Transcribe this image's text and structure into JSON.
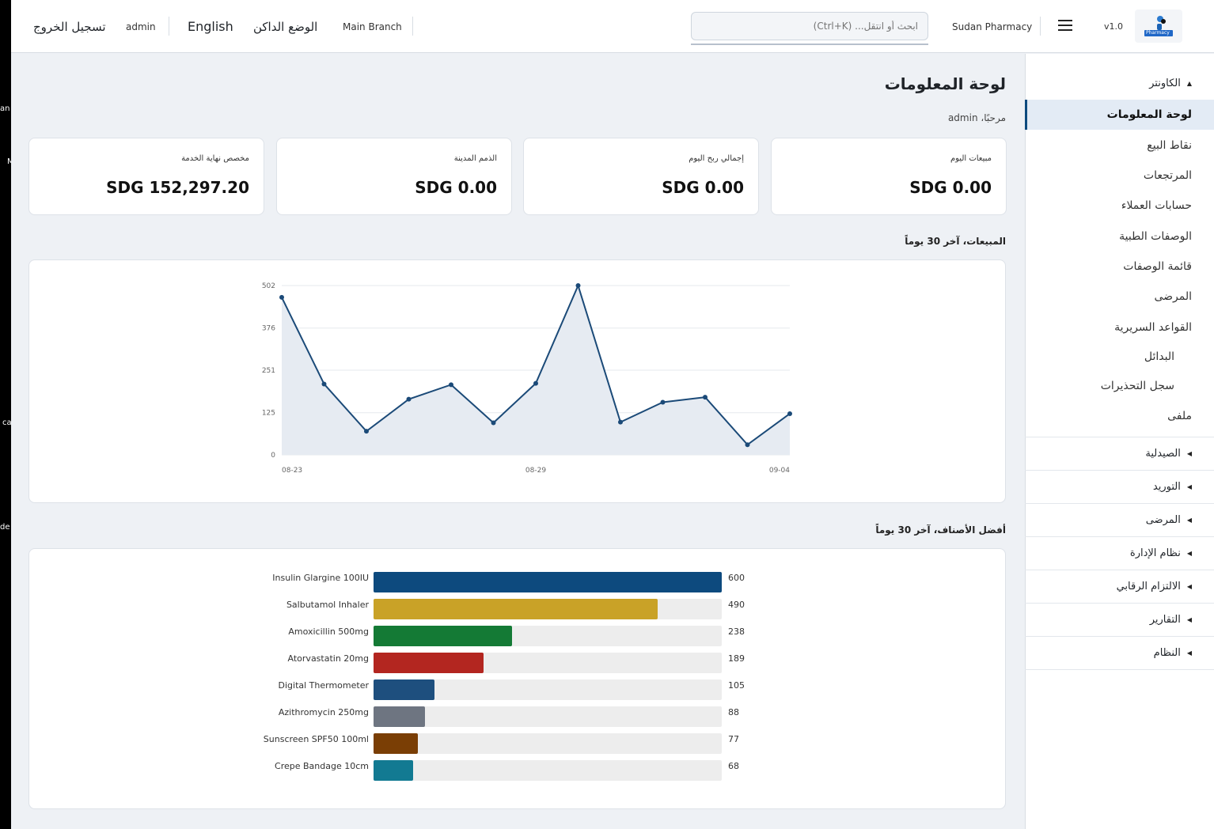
{
  "header": {
    "version": "v1.0",
    "logo_text": "Pharmacy",
    "app_name": "Sudan Pharmacy",
    "search_placeholder": "ابحث أو انتقل... (Ctrl+K)",
    "branch": "Main Branch",
    "dark_mode": "الوضع الداكن",
    "language": "English",
    "user": "admin",
    "logout": "تسجيل الخروج"
  },
  "sidebar": {
    "counter_group": "الكاونتر",
    "counter_items": [
      "لوحة المعلومات",
      "نقاط البيع",
      "المرتجعات",
      "حسابات العملاء",
      "الوصفات الطبية",
      "قائمة الوصفات",
      "المرضى",
      "القواعد السريرية",
      "البدائل",
      "سجل التحذيرات",
      "ملفى"
    ],
    "groups": [
      "الصيدلية",
      "التوريد",
      "المرضى",
      "نظام الإدارة",
      "الالتزام الرقابي",
      "التقارير",
      "النظام"
    ]
  },
  "main": {
    "title": "لوحة المعلومات",
    "welcome": "مرحبًا، admin",
    "cards": [
      {
        "label": "مبيعات اليوم",
        "value": "SDG 0.00"
      },
      {
        "label": "إجمالي ربح اليوم",
        "value": "SDG 0.00"
      },
      {
        "label": "الذمم المدينة",
        "value": "SDG 0.00"
      },
      {
        "label": "مخصص نهاية الخدمة",
        "value": "SDG 152,297.20"
      }
    ],
    "sales_title": "المبيعات، آخر 30 يوماً",
    "top_items_title": "أفضل الأصناف، آخر 30 يوماً"
  },
  "left_strip": [
    "an",
    "M",
    "ca",
    "de"
  ],
  "colors": {
    "accent": "#0d4a7e",
    "line": "#1b4a78",
    "area": "#e6ebf2"
  },
  "chart_data": [
    {
      "type": "area",
      "title": "المبيعات، آخر 30 يوماً",
      "x": [
        "08-23",
        "08-24",
        "08-25",
        "08-26",
        "08-27",
        "08-28",
        "08-29",
        "08-30",
        "08-31",
        "09-01",
        "09-02",
        "09-03",
        "09-04"
      ],
      "x_tick_labels": [
        "08-23",
        "08-29",
        "09-04"
      ],
      "y": [
        467,
        210,
        70,
        165,
        208,
        95,
        212,
        502,
        97,
        156,
        171,
        30,
        122
      ],
      "yticks": [
        0,
        125,
        251,
        376,
        502
      ],
      "ylim": [
        0,
        502
      ],
      "grid": true
    },
    {
      "type": "bar",
      "orientation": "horizontal",
      "title": "أفضل الأصناف، آخر 30 يوماً",
      "categories": [
        "Insulin Glargine 100IU",
        "Salbutamol Inhaler",
        "Amoxicillin 500mg",
        "Atorvastatin 20mg",
        "Digital Thermometer",
        "Azithromycin 250mg",
        "Sunscreen SPF50 100ml",
        "Crepe Bandage 10cm"
      ],
      "values": [
        600,
        490,
        238,
        189,
        105,
        88,
        77,
        68
      ],
      "colors": [
        "#0d4a7e",
        "#c9a227",
        "#147a35",
        "#b32620",
        "#1e4f7e",
        "#6e7581",
        "#7a3e05",
        "#127a92"
      ],
      "xlim": [
        0,
        600
      ]
    }
  ]
}
